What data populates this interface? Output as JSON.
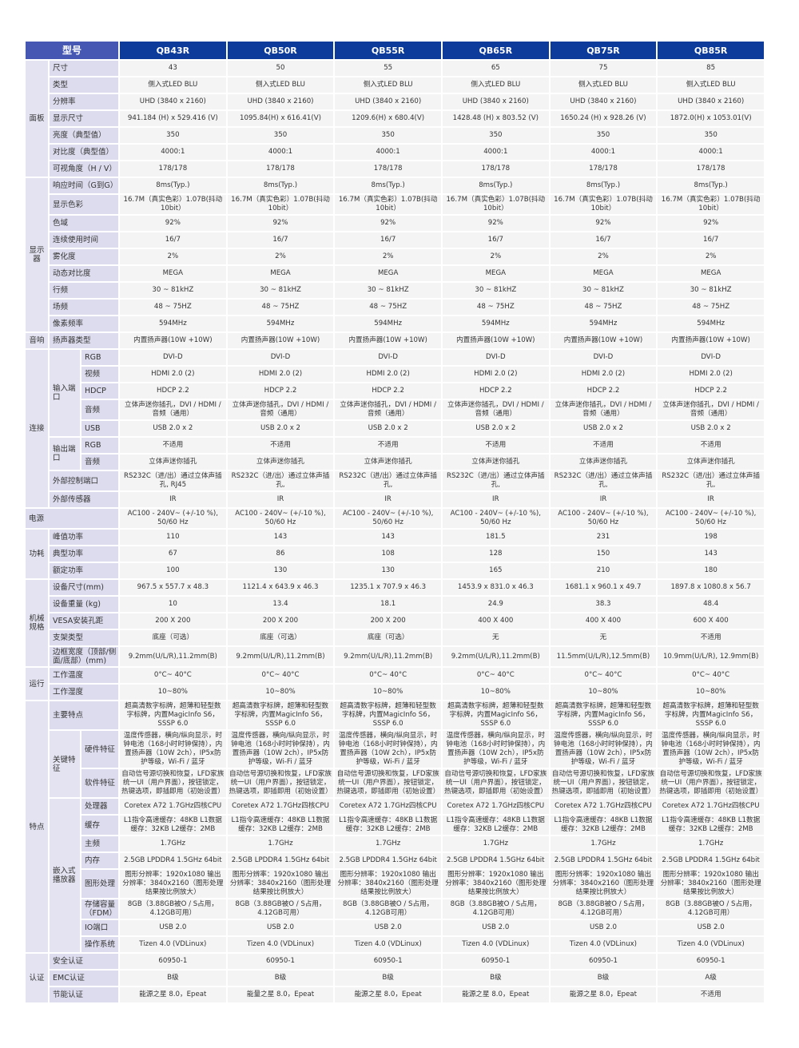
{
  "header": {
    "label": "型号",
    "models": [
      "QB43R",
      "QB50R",
      "QB55R",
      "QB65R",
      "QB75R",
      "QB85R"
    ]
  },
  "groups": [
    {
      "name": "面板",
      "items": [
        {
          "label": "尺寸",
          "values": [
            "43",
            "50",
            "55",
            "65",
            "75",
            "85"
          ]
        },
        {
          "label": "类型",
          "values": [
            "侧入式LED BLU",
            "侧入式LED BLU",
            "侧入式LED BLU",
            "侧入式LED BLU",
            "侧入式LED BLU",
            "侧入式LED BLU"
          ]
        },
        {
          "label": "分辨率",
          "values": [
            "UHD (3840 x 2160)",
            "UHD (3840 x 2160)",
            "UHD (3840 x 2160)",
            "UHD (3840 x 2160)",
            "UHD (3840 x 2160)",
            "UHD (3840 x 2160)"
          ]
        },
        {
          "label": "显示尺寸",
          "values": [
            "941.184 (H) x 529.416 (V)",
            "1095.84(H) x 616.41(V)",
            "1209.6(H) x 680.4(V)",
            "1428.48 (H) x 803.52 (V)",
            "1650.24 (H) x 928.26 (V)",
            "1872.0(H) x 1053.01(V)"
          ]
        },
        {
          "label": "亮度（典型值）",
          "values": [
            "350",
            "350",
            "350",
            "350",
            "350",
            "350"
          ]
        },
        {
          "label": "对比度（典型值）",
          "values": [
            "4000:1",
            "4000:1",
            "4000:1",
            "4000:1",
            "4000:1",
            "4000:1"
          ]
        },
        {
          "label": "可视角度（H / V）",
          "values": [
            "178/178",
            "178/178",
            "178/178",
            "178/178",
            "178/178",
            "178/178"
          ]
        }
      ]
    },
    {
      "name": "显示器",
      "items": [
        {
          "label": "响应时间（G到G）",
          "values": [
            "8ms(Typ.)",
            "8ms(Typ.)",
            "8ms(Typ.)",
            "8ms(Typ.)",
            "8ms(Typ.)",
            "8ms(Typ.)"
          ]
        },
        {
          "label": "显示色彩",
          "values": [
            "16.7M（真实色彩）1.07B(抖动 10bit）",
            "16.7M（真实色彩）1.07B(抖动 10bit）",
            "16.7M（真实色彩）1.07B(抖动 10bit）",
            "16.7M（真实色彩）1.07B(抖动 10bit）",
            "16.7M（真实色彩）1.07B(抖动 10bit）",
            "16.7M（真实色彩）1.07B(抖动 10bit）"
          ]
        },
        {
          "label": "色域",
          "values": [
            "92%",
            "92%",
            "92%",
            "92%",
            "92%",
            "92%"
          ]
        },
        {
          "label": "连续使用时间",
          "values": [
            "16/7",
            "16/7",
            "16/7",
            "16/7",
            "16/7",
            "16/7"
          ]
        },
        {
          "label": "雾化度",
          "values": [
            "2%",
            "2%",
            "2%",
            "2%",
            "2%",
            "2%"
          ]
        },
        {
          "label": "动态对比度",
          "values": [
            "MEGA",
            "MEGA",
            "MEGA",
            "MEGA",
            "MEGA",
            "MEGA"
          ]
        },
        {
          "label": "行频",
          "values": [
            "30 ~ 81kHZ",
            "30 ~ 81kHZ",
            "30 ~ 81kHZ",
            "30 ~ 81kHZ",
            "30 ~ 81kHZ",
            "30 ~ 81kHZ"
          ]
        },
        {
          "label": "场频",
          "values": [
            "48 ~ 75HZ",
            "48 ~ 75HZ",
            "48 ~ 75HZ",
            "48 ~ 75HZ",
            "48 ~ 75HZ",
            "48 ~ 75HZ"
          ]
        },
        {
          "label": "像素频率",
          "values": [
            "594MHz",
            "594MHz",
            "594MHz",
            "594MHz",
            "594MHz",
            "594MHz"
          ]
        }
      ]
    },
    {
      "name": "音响",
      "items": [
        {
          "label": "扬声器类型",
          "values": [
            "内置扬声器(10W +10W)",
            "内置扬声器(10W +10W)",
            "内置扬声器(10W +10W)",
            "内置扬声器(10W +10W)",
            "内置扬声器(10W +10W)",
            "内置扬声器(10W +10W)"
          ]
        }
      ]
    },
    {
      "name": "连接",
      "items": [
        {
          "sub": "输入端口",
          "items": [
            {
              "label": "RGB",
              "values": [
                "DVI-D",
                "DVI-D",
                "DVI-D",
                "DVI-D",
                "DVI-D",
                "DVI-D"
              ]
            },
            {
              "label": "视频",
              "values": [
                "HDMI 2.0 (2)",
                "HDMI 2.0 (2)",
                "HDMI 2.0 (2)",
                "HDMI 2.0 (2)",
                "HDMI 2.0 (2)",
                "HDMI 2.0 (2)"
              ]
            },
            {
              "label": "HDCP",
              "values": [
                "HDCP 2.2",
                "HDCP 2.2",
                "HDCP 2.2",
                "HDCP 2.2",
                "HDCP 2.2",
                "HDCP 2.2"
              ]
            },
            {
              "label": "音频",
              "values": [
                "立体声迷你插孔，DVI / HDMI /音频（通用）",
                "立体声迷你插孔，DVI / HDMI /音频（通用）",
                "立体声迷你插孔，DVI / HDMI /音频（通用）",
                "立体声迷你插孔，DVI / HDMI /音频（通用）",
                "立体声迷你插孔，DVI / HDMI /音频（通用）",
                "立体声迷你插孔，DVI / HDMI /音频（通用）"
              ]
            },
            {
              "label": "USB",
              "values": [
                "USB 2.0 x 2",
                "USB 2.0 x 2",
                "USB 2.0 x 2",
                "USB 2.0 x 2",
                "USB 2.0 x 2",
                "USB 2.0 x 2"
              ]
            }
          ]
        },
        {
          "sub": "输出端口",
          "items": [
            {
              "label": "RGB",
              "values": [
                "不适用",
                "不适用",
                "不适用",
                "不适用",
                "不适用",
                "不适用"
              ]
            },
            {
              "label": "音频",
              "values": [
                "立体声迷你插孔",
                "立体声迷你插孔",
                "立体声迷你插孔",
                "立体声迷你插孔",
                "立体声迷你插孔",
                "立体声迷你插孔"
              ]
            }
          ]
        },
        {
          "label": "外部控制端口",
          "values": [
            "RS232C（进/出）通过立体声插孔, RJ45",
            "RS232C（进/出）通过立体声插孔,",
            "RS232C（进/出）通过立体声插孔,",
            "RS232C（进/出）通过立体声插孔,",
            "RS232C（进/出）通过立体声插孔,",
            "RS232C（进/出）通过立体声插孔,"
          ]
        },
        {
          "label": "外部传感器",
          "values": [
            "IR",
            "IR",
            "IR",
            "IR",
            "IR",
            "IR"
          ]
        }
      ]
    },
    {
      "name": "电源",
      "full": true,
      "values": [
        "AC100 - 240V~ (+/-10 %), 50/60 Hz",
        "AC100 - 240V~ (+/-10 %), 50/60 Hz",
        "AC100 - 240V~ (+/-10 %), 50/60 Hz",
        "AC100 - 240V~ (+/-10 %), 50/60 Hz",
        "AC100 - 240V~ (+/-10 %), 50/60 Hz",
        "AC100 - 240V~ (+/-10 %), 50/60 Hz"
      ]
    },
    {
      "name": "功耗",
      "items": [
        {
          "label": "峰值功率",
          "values": [
            "110",
            "143",
            "143",
            "181.5",
            "231",
            "198"
          ]
        },
        {
          "label": "典型功率",
          "values": [
            "67",
            "86",
            "108",
            "128",
            "150",
            "143"
          ]
        },
        {
          "label": "额定功率",
          "values": [
            "100",
            "130",
            "130",
            "165",
            "210",
            "180"
          ]
        }
      ]
    },
    {
      "name": "机械规格",
      "items": [
        {
          "label": "设备尺寸(mm)",
          "values": [
            "967.5 x 557.7 x 48.3",
            "1121.4 x 643.9 x 46.3",
            "1235.1 x 707.9 x 46.3",
            "1453.9 x 831.0 x 46.3",
            "1681.1 x 960.1 x 49.7",
            "1897.8 x 1080.8 x 56.7"
          ]
        },
        {
          "label": "设备重量 (kg)",
          "values": [
            "10",
            "13.4",
            "18.1",
            "24.9",
            "38.3",
            "48.4"
          ]
        },
        {
          "label": "VESA安装孔距",
          "values": [
            "200 X 200",
            "200 X 200",
            "200 X 200",
            "400 X 400",
            "400 X 400",
            "600 X 400"
          ]
        },
        {
          "label": "支架类型",
          "values": [
            "底座（可选）",
            "底座（可选）",
            "底座（可选）",
            "无",
            "无",
            "不适用"
          ]
        },
        {
          "label": "边框宽度（顶部/侧面/底部）(mm)",
          "values": [
            "9.2mm(U/L/R),11.2mm(B)",
            "9.2mm(U/L/R),11.2mm(B)",
            "9.2mm(U/L/R),11.2mm(B)",
            "9.2mm(U/L/R),11.2mm(B)",
            "11.5mm(U/L/R),12.5mm(B)",
            "10.9mm(U/L/R), 12.9mm(B)"
          ]
        }
      ]
    },
    {
      "name": "运行",
      "items": [
        {
          "label": "工作温度",
          "values": [
            "0°C~ 40°C",
            "0°C~ 40°C",
            "0°C~ 40°C",
            "0°C~ 40°C",
            "0°C~ 40°C",
            "0°C~ 40°C"
          ]
        },
        {
          "label": "工作湿度",
          "values": [
            "10~80%",
            "10~80%",
            "10~80%",
            "10~80%",
            "10~80%",
            "10~80%"
          ]
        }
      ]
    },
    {
      "name": "特点",
      "items": [
        {
          "label": "主要特点",
          "values": [
            "超高清数字标牌，超薄和轻型数字标牌，内置MagicInfo S6，SSSP 6.0",
            "超高清数字标牌，超薄和轻型数字标牌，内置MagicInfo S6，SSSP 6.0",
            "超高清数字标牌，超薄和轻型数字标牌，内置MagicInfo S6，SSSP 6.0",
            "超高清数字标牌，超薄和轻型数字标牌，内置MagicInfo S6，SSSP 6.0",
            "超高清数字标牌，超薄和轻型数字标牌，内置MagicInfo S6，SSSP 6.0",
            "超高清数字标牌，超薄和轻型数字标牌，内置MagicInfo S6，SSSP 6.0"
          ]
        },
        {
          "sub": "关键特征",
          "items": [
            {
              "label": "硬件特征",
              "values": [
                "温度传感器，横向/纵向显示，时钟电池（168小时时钟保持），内置扬声器（10W 2ch），IP5x防护等级，Wi-Fi / 蓝牙",
                "温度传感器，横向/纵向显示，时钟电池（168小时时钟保持），内置扬声器（10W 2ch），IP5x防护等级，Wi-Fi / 蓝牙",
                "温度传感器，横向/纵向显示，时钟电池（168小时时钟保持），内置扬声器（10W 2ch），IP5x防护等级，Wi-Fi / 蓝牙",
                "温度传感器，横向/纵向显示，时钟电池（168小时时钟保持），内置扬声器（10W 2ch），IP5x防护等级，Wi-Fi / 蓝牙",
                "温度传感器，横向/纵向显示，时钟电池（168小时时钟保持），内置扬声器（10W 2ch），IP5x防护等级，Wi-Fi / 蓝牙",
                "温度传感器，横向/纵向显示，时钟电池（168小时时钟保持），内置扬声器（10W 2ch），IP5x防护等级，Wi-Fi / 蓝牙"
              ]
            },
            {
              "label": "软件特征",
              "values": [
                "自动信号源切换和恢复，LFD家族统一UI（用户界面），按钮锁定，热键选项，即插即用（初始设置）",
                "自动信号源切换和恢复，LFD家族统一UI（用户界面），按钮锁定，热键选项，即插即用（初始设置）",
                "自动信号源切换和恢复，LFD家族统一UI（用户界面），按钮锁定，热键选项，即插即用（初始设置）",
                "自动信号源切换和恢复，LFD家族统一UI（用户界面），按钮锁定，热键选项，即插即用（初始设置）",
                "自动信号源切换和恢复，LFD家族统一UI（用户界面），按钮锁定，热键选项，即插即用（初始设置）",
                "自动信号源切换和恢复，LFD家族统一UI（用户界面），按钮锁定，热键选项，即插即用（初始设置）"
              ]
            }
          ]
        },
        {
          "sub": "嵌入式播放器",
          "items": [
            {
              "label": "处理器",
              "values": [
                "Coretex A72 1.7GHz四核CPU",
                "Coretex A72 1.7GHz四核CPU",
                "Coretex A72 1.7GHz四核CPU",
                "Coretex A72 1.7GHz四核CPU",
                "Coretex A72 1.7GHz四核CPU",
                "Coretex A72 1.7GHz四核CPU"
              ]
            },
            {
              "label": "缓存",
              "values": [
                "L1指令高速缓存：48KB L1数据缓存：32KB L2缓存：2MB",
                "L1指令高速缓存：48KB L1数据缓存：32KB L2缓存：2MB",
                "L1指令高速缓存：48KB L1数据缓存：32KB L2缓存：2MB",
                "L1指令高速缓存：48KB L1数据缓存：32KB L2缓存：2MB",
                "L1指令高速缓存：48KB L1数据缓存：32KB L2缓存：2MB",
                "L1指令高速缓存：48KB L1数据缓存：32KB L2缓存：2MB"
              ]
            },
            {
              "label": "主频",
              "values": [
                "1.7GHz",
                "1.7GHz",
                "1.7GHz",
                "1.7GHz",
                "1.7GHz",
                "1.7GHz"
              ]
            },
            {
              "label": "内存",
              "values": [
                "2.5GB LPDDR4 1.5GHz 64bit",
                "2.5GB LPDDR4 1.5GHz 64bit",
                "2.5GB LPDDR4 1.5GHz 64bit",
                "2.5GB LPDDR4 1.5GHz 64bit",
                "2.5GB LPDDR4 1.5GHz 64bit",
                "2.5GB LPDDR4 1.5GHz 64bit"
              ]
            },
            {
              "label": "图形处理",
              "values": [
                "图形分辨率：1920x1080 输出分辨率：3840x2160（图形处理结果按比例放大）",
                "图形分辨率：1920x1080 输出分辨率：3840x2160（图形处理结果按比例放大）",
                "图形分辨率：1920x1080 输出分辨率：3840x2160（图形处理结果按比例放大）",
                "图形分辨率：1920x1080 输出分辨率：3840x2160（图形处理结果按比例放大）",
                "图形分辨率：1920x1080 输出分辨率：3840x2160（图形处理结果按比例放大）",
                "图形分辨率：1920x1080 输出分辨率：3840x2160（图形处理结果按比例放大）"
              ]
            },
            {
              "label": "存储容量（FDM）",
              "values": [
                "8GB（3.88GB被O / S占用，4.12GB可用）",
                "8GB（3.88GB被O / S占用，4.12GB可用）",
                "8GB（3.88GB被O / S占用，4.12GB可用）",
                "8GB（3.88GB被O / S占用，4.12GB可用）",
                "8GB（3.88GB被O / S占用，4.12GB可用）",
                "8GB（3.88GB被O / S占用，4.12GB可用）"
              ]
            },
            {
              "label": "IO端口",
              "values": [
                "USB 2.0",
                "USB 2.0",
                "USB 2.0",
                "USB 2.0",
                "USB 2.0",
                "USB 2.0"
              ]
            },
            {
              "label": "操作系统",
              "values": [
                "Tizen 4.0 (VDLinux)",
                "Tizen 4.0 (VDLinux)",
                "Tizen 4.0 (VDLinux)",
                "Tizen 4.0 (VDLinux)",
                "Tizen 4.0 (VDLinux)",
                "Tizen 4.0 (VDLinux)"
              ]
            }
          ]
        }
      ]
    },
    {
      "name": "认证",
      "items": [
        {
          "label": "安全认证",
          "values": [
            "60950-1",
            "60950-1",
            "60950-1",
            "60950-1",
            "60950-1",
            "60950-1"
          ]
        },
        {
          "label": "EMC认证",
          "values": [
            "B级",
            "B级",
            "B级",
            "B级",
            "B级",
            "A级"
          ]
        },
        {
          "label": "节能认证",
          "values": [
            "能源之星 8.0，Epeat",
            "能量之星 8.0，Epeat",
            "能源之星 8.0，Epeat",
            "能源之星 8.0，Epeat",
            "能源之星 8.0，Epeat",
            "不适用"
          ]
        }
      ]
    }
  ]
}
